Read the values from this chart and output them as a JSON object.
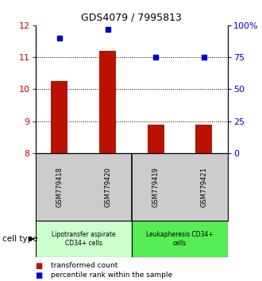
{
  "title": "GDS4079 / 7995813",
  "samples": [
    "GSM779418",
    "GSM779420",
    "GSM779419",
    "GSM779421"
  ],
  "transformed_counts": [
    10.25,
    11.2,
    8.88,
    8.88
  ],
  "percentile_ranks": [
    90,
    97,
    75,
    75
  ],
  "ylim_left": [
    8,
    12
  ],
  "ylim_right": [
    0,
    100
  ],
  "yticks_left": [
    8,
    9,
    10,
    11,
    12
  ],
  "yticks_right": [
    0,
    25,
    50,
    75,
    100
  ],
  "ytick_labels_right": [
    "0",
    "25",
    "50",
    "75",
    "100%"
  ],
  "bar_color": "#bb1100",
  "dot_color": "#0000cc",
  "grid_color": "#000000",
  "bg_color": "#ffffff",
  "cell_types": [
    {
      "label": "Lipotransfer aspirate\nCD34+ cells",
      "samples": [
        0,
        1
      ],
      "color": "#ccffcc"
    },
    {
      "label": "Leukapheresis CD34+\ncells",
      "samples": [
        2,
        3
      ],
      "color": "#55ee55"
    }
  ],
  "sample_bg_color": "#cccccc",
  "legend_items": [
    {
      "color": "#bb1100",
      "label": "transformed count"
    },
    {
      "color": "#0000cc",
      "label": "percentile rank within the sample"
    }
  ],
  "cell_type_label": "cell type",
  "left_axis_color": "#cc0000",
  "right_axis_color": "#0000cc"
}
